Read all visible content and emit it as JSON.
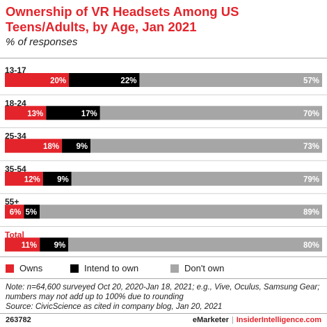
{
  "title": "Ownership of VR Headsets Among US Teens/Adults, by Age, Jan 2021",
  "subtitle": "% of responses",
  "chart_data": {
    "type": "bar",
    "orientation": "horizontal",
    "stacked": true,
    "categories": [
      "13-17",
      "18-24",
      "25-34",
      "35-54",
      "55+",
      "Total"
    ],
    "series": [
      {
        "name": "Owns",
        "color": "#e3242b",
        "values": [
          20,
          13,
          18,
          12,
          6,
          11
        ]
      },
      {
        "name": "Intend to own",
        "color": "#000000",
        "values": [
          22,
          17,
          9,
          9,
          5,
          9
        ]
      },
      {
        "name": "Don't own",
        "color": "#a6a6a6",
        "values": [
          57,
          70,
          73,
          79,
          89,
          80
        ]
      }
    ],
    "value_suffix": "%",
    "highlight_category": "Total",
    "legend_position": "bottom-left"
  },
  "legend": [
    {
      "label": "Owns",
      "color": "#e3242b"
    },
    {
      "label": "Intend to own",
      "color": "#000000"
    },
    {
      "label": "Don't own",
      "color": "#a6a6a6"
    }
  ],
  "note": {
    "line1": "Note: n=64,600 surveyed Oct 20, 2020-Jan 18, 2021; e.g., Vive, Oculus, Samsung Gear;",
    "line2": "numbers may not add up to 100% due to rounding",
    "line3": "Source: CivicScience as cited in company blog, Jan 20, 2021"
  },
  "footer": {
    "chart_id": "263782",
    "brand1": "eMarketer",
    "separator": "|",
    "brand2": "InsiderIntelligence.com"
  }
}
